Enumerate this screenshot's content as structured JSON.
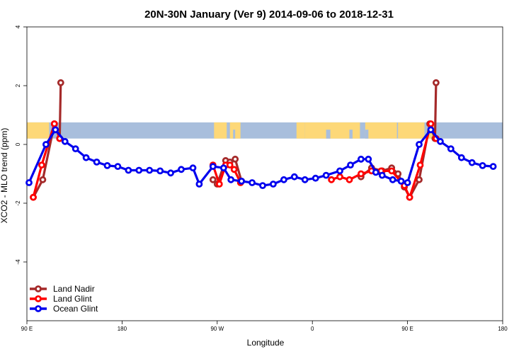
{
  "chart_data": {
    "type": "line",
    "title": "20N-30N January (Ver 9)   2014-09-06 to 2018-12-31",
    "xlabel": "Longitude",
    "ylabel": "XCO2 - MLO trend (ppm)",
    "xlim": [
      90,
      540
    ],
    "ylim": [
      -6,
      4
    ],
    "x_ticks": [
      {
        "value": 90,
        "label": "90 E"
      },
      {
        "value": 180,
        "label": "180"
      },
      {
        "value": 270,
        "label": "90 W"
      },
      {
        "value": 360,
        "label": "0"
      },
      {
        "value": 450,
        "label": "90 E"
      },
      {
        "value": 540,
        "label": "180"
      }
    ],
    "y_ticks": [
      {
        "value": 4,
        "label": "4"
      },
      {
        "value": 2,
        "label": "2"
      },
      {
        "value": 0,
        "label": "0"
      },
      {
        "value": -2,
        "label": "-2"
      },
      {
        "value": -4,
        "label": "-4"
      }
    ],
    "map_band": {
      "y_from": 0.2,
      "y_to": 0.75,
      "ocean_color": "#a8bedc",
      "land_color": "#fdd878"
    },
    "legend": {
      "position": "bottom-left"
    },
    "series": [
      {
        "name": "Land Nadir",
        "color": "#a52a2a",
        "segments": [
          [
            [
              96,
              -1.8
            ],
            [
              105,
              -1.2
            ],
            [
              116,
              0.7
            ],
            [
              121,
              0.2
            ],
            [
              122,
              2.1
            ]
          ],
          [
            [
              266,
              -1.2
            ],
            [
              270,
              -1.35
            ],
            [
              278,
              -0.55
            ],
            [
              282,
              -0.6
            ],
            [
              287,
              -0.5
            ],
            [
              293,
              -1.25
            ]
          ],
          [
            [
              406,
              -1.1
            ],
            [
              416,
              -0.8
            ],
            [
              426,
              -0.9
            ],
            [
              435,
              -0.8
            ],
            [
              441,
              -1.0
            ],
            [
              447,
              -1.45
            ],
            [
              452,
              -1.8
            ],
            [
              461,
              -1.2
            ],
            [
              471,
              0.7
            ],
            [
              476,
              0.2
            ],
            [
              477,
              2.1
            ]
          ]
        ]
      },
      {
        "name": "Land Glint",
        "color": "#ff0000",
        "segments": [
          [
            [
              96,
              -1.8
            ],
            [
              104,
              -0.7
            ],
            [
              116,
              0.7
            ],
            [
              121,
              0.2
            ]
          ],
          [
            [
              266,
              -0.7
            ],
            [
              272,
              -1.35
            ],
            [
              278,
              -0.7
            ],
            [
              282,
              -0.7
            ],
            [
              286,
              -0.85
            ],
            [
              292,
              -1.3
            ]
          ],
          [
            [
              378,
              -1.2
            ],
            [
              386,
              -1.1
            ],
            [
              395,
              -1.2
            ],
            [
              406,
              -1.0
            ],
            [
              416,
              -0.9
            ],
            [
              425,
              -0.9
            ],
            [
              435,
              -0.9
            ],
            [
              447,
              -1.4
            ],
            [
              452,
              -1.8
            ],
            [
              462,
              -0.7
            ],
            [
              472,
              0.7
            ],
            [
              477,
              0.2
            ]
          ]
        ]
      },
      {
        "name": "Ocean Glint",
        "color": "#0000ee",
        "segments": [
          [
            [
              92,
              -1.3
            ],
            [
              108,
              0.0
            ],
            [
              117,
              0.5
            ],
            [
              126,
              0.1
            ],
            [
              136,
              -0.15
            ],
            [
              146,
              -0.45
            ],
            [
              156,
              -0.6
            ],
            [
              166,
              -0.72
            ],
            [
              176,
              -0.75
            ],
            [
              186,
              -0.88
            ],
            [
              196,
              -0.88
            ],
            [
              206,
              -0.88
            ],
            [
              216,
              -0.9
            ],
            [
              226,
              -0.97
            ],
            [
              236,
              -0.85
            ],
            [
              247,
              -0.8
            ],
            [
              253,
              -1.35
            ],
            [
              266,
              -0.75
            ],
            [
              276,
              -0.8
            ],
            [
              283,
              -1.2
            ],
            [
              293,
              -1.25
            ],
            [
              303,
              -1.3
            ],
            [
              313,
              -1.4
            ],
            [
              323,
              -1.35
            ],
            [
              333,
              -1.2
            ],
            [
              343,
              -1.1
            ],
            [
              353,
              -1.2
            ],
            [
              363,
              -1.15
            ],
            [
              373,
              -1.05
            ],
            [
              386,
              -0.9
            ],
            [
              396,
              -0.7
            ],
            [
              406,
              -0.5
            ],
            [
              413,
              -0.5
            ],
            [
              420,
              -0.95
            ],
            [
              426,
              -1.05
            ],
            [
              436,
              -1.2
            ],
            [
              444,
              -1.25
            ],
            [
              450,
              -1.3
            ],
            [
              461,
              0.0
            ],
            [
              472,
              0.5
            ],
            [
              481,
              0.1
            ],
            [
              491,
              -0.15
            ],
            [
              501,
              -0.45
            ],
            [
              511,
              -0.62
            ],
            [
              521,
              -0.72
            ],
            [
              531,
              -0.75
            ]
          ]
        ]
      }
    ]
  }
}
